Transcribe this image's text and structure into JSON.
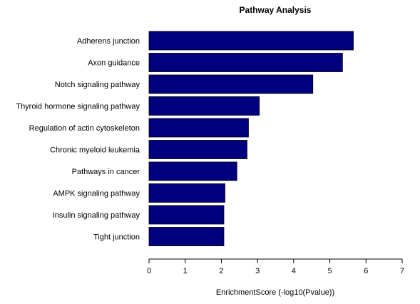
{
  "chart_data": {
    "type": "bar",
    "orientation": "horizontal",
    "title": "Pathway Analysis",
    "xlabel": "EnrichmentScore (-log10(Pvalue))",
    "ylabel": "",
    "categories": [
      "Adherens junction",
      "Axon guidance",
      "Notch signaling pathway",
      "Thyroid hormone signaling pathway",
      "Regulation of actin cytoskeleton",
      "Chronic myeloid leukemia",
      "Pathways in cancer",
      "AMPK signaling pathway",
      "Insulin signaling pathway",
      "Tight junction"
    ],
    "values": [
      5.65,
      5.35,
      4.53,
      3.05,
      2.75,
      2.71,
      2.43,
      2.1,
      2.07,
      2.07
    ],
    "xlim": [
      0,
      7
    ],
    "xticks": [
      "0",
      "1",
      "2",
      "3",
      "4",
      "5",
      "6",
      "7"
    ],
    "grid": false,
    "colors": {
      "bar_fill": "#00007f",
      "bar_stroke": "#000000"
    }
  }
}
